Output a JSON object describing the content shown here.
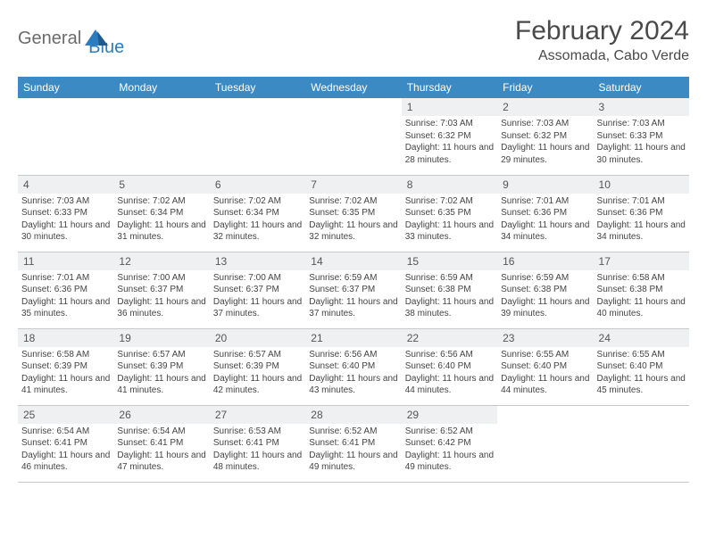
{
  "logo": {
    "text1": "General",
    "text2": "Blue",
    "shape_color": "#2d7cc0"
  },
  "header": {
    "month_title": "February 2024",
    "location": "Assomada, Cabo Verde"
  },
  "colors": {
    "header_bg": "#3b8ac4",
    "header_text": "#ffffff",
    "daynum_bg": "#eef0f2",
    "border": "#c8c8c8",
    "body_text": "#444444",
    "title_text": "#4a4a4a"
  },
  "weekdays": [
    "Sunday",
    "Monday",
    "Tuesday",
    "Wednesday",
    "Thursday",
    "Friday",
    "Saturday"
  ],
  "weeks": [
    [
      {
        "empty": true
      },
      {
        "empty": true
      },
      {
        "empty": true
      },
      {
        "empty": true
      },
      {
        "day": "1",
        "sunrise": "Sunrise: 7:03 AM",
        "sunset": "Sunset: 6:32 PM",
        "daylight": "Daylight: 11 hours and 28 minutes."
      },
      {
        "day": "2",
        "sunrise": "Sunrise: 7:03 AM",
        "sunset": "Sunset: 6:32 PM",
        "daylight": "Daylight: 11 hours and 29 minutes."
      },
      {
        "day": "3",
        "sunrise": "Sunrise: 7:03 AM",
        "sunset": "Sunset: 6:33 PM",
        "daylight": "Daylight: 11 hours and 30 minutes."
      }
    ],
    [
      {
        "day": "4",
        "sunrise": "Sunrise: 7:03 AM",
        "sunset": "Sunset: 6:33 PM",
        "daylight": "Daylight: 11 hours and 30 minutes."
      },
      {
        "day": "5",
        "sunrise": "Sunrise: 7:02 AM",
        "sunset": "Sunset: 6:34 PM",
        "daylight": "Daylight: 11 hours and 31 minutes."
      },
      {
        "day": "6",
        "sunrise": "Sunrise: 7:02 AM",
        "sunset": "Sunset: 6:34 PM",
        "daylight": "Daylight: 11 hours and 32 minutes."
      },
      {
        "day": "7",
        "sunrise": "Sunrise: 7:02 AM",
        "sunset": "Sunset: 6:35 PM",
        "daylight": "Daylight: 11 hours and 32 minutes."
      },
      {
        "day": "8",
        "sunrise": "Sunrise: 7:02 AM",
        "sunset": "Sunset: 6:35 PM",
        "daylight": "Daylight: 11 hours and 33 minutes."
      },
      {
        "day": "9",
        "sunrise": "Sunrise: 7:01 AM",
        "sunset": "Sunset: 6:36 PM",
        "daylight": "Daylight: 11 hours and 34 minutes."
      },
      {
        "day": "10",
        "sunrise": "Sunrise: 7:01 AM",
        "sunset": "Sunset: 6:36 PM",
        "daylight": "Daylight: 11 hours and 34 minutes."
      }
    ],
    [
      {
        "day": "11",
        "sunrise": "Sunrise: 7:01 AM",
        "sunset": "Sunset: 6:36 PM",
        "daylight": "Daylight: 11 hours and 35 minutes."
      },
      {
        "day": "12",
        "sunrise": "Sunrise: 7:00 AM",
        "sunset": "Sunset: 6:37 PM",
        "daylight": "Daylight: 11 hours and 36 minutes."
      },
      {
        "day": "13",
        "sunrise": "Sunrise: 7:00 AM",
        "sunset": "Sunset: 6:37 PM",
        "daylight": "Daylight: 11 hours and 37 minutes."
      },
      {
        "day": "14",
        "sunrise": "Sunrise: 6:59 AM",
        "sunset": "Sunset: 6:37 PM",
        "daylight": "Daylight: 11 hours and 37 minutes."
      },
      {
        "day": "15",
        "sunrise": "Sunrise: 6:59 AM",
        "sunset": "Sunset: 6:38 PM",
        "daylight": "Daylight: 11 hours and 38 minutes."
      },
      {
        "day": "16",
        "sunrise": "Sunrise: 6:59 AM",
        "sunset": "Sunset: 6:38 PM",
        "daylight": "Daylight: 11 hours and 39 minutes."
      },
      {
        "day": "17",
        "sunrise": "Sunrise: 6:58 AM",
        "sunset": "Sunset: 6:38 PM",
        "daylight": "Daylight: 11 hours and 40 minutes."
      }
    ],
    [
      {
        "day": "18",
        "sunrise": "Sunrise: 6:58 AM",
        "sunset": "Sunset: 6:39 PM",
        "daylight": "Daylight: 11 hours and 41 minutes."
      },
      {
        "day": "19",
        "sunrise": "Sunrise: 6:57 AM",
        "sunset": "Sunset: 6:39 PM",
        "daylight": "Daylight: 11 hours and 41 minutes."
      },
      {
        "day": "20",
        "sunrise": "Sunrise: 6:57 AM",
        "sunset": "Sunset: 6:39 PM",
        "daylight": "Daylight: 11 hours and 42 minutes."
      },
      {
        "day": "21",
        "sunrise": "Sunrise: 6:56 AM",
        "sunset": "Sunset: 6:40 PM",
        "daylight": "Daylight: 11 hours and 43 minutes."
      },
      {
        "day": "22",
        "sunrise": "Sunrise: 6:56 AM",
        "sunset": "Sunset: 6:40 PM",
        "daylight": "Daylight: 11 hours and 44 minutes."
      },
      {
        "day": "23",
        "sunrise": "Sunrise: 6:55 AM",
        "sunset": "Sunset: 6:40 PM",
        "daylight": "Daylight: 11 hours and 44 minutes."
      },
      {
        "day": "24",
        "sunrise": "Sunrise: 6:55 AM",
        "sunset": "Sunset: 6:40 PM",
        "daylight": "Daylight: 11 hours and 45 minutes."
      }
    ],
    [
      {
        "day": "25",
        "sunrise": "Sunrise: 6:54 AM",
        "sunset": "Sunset: 6:41 PM",
        "daylight": "Daylight: 11 hours and 46 minutes."
      },
      {
        "day": "26",
        "sunrise": "Sunrise: 6:54 AM",
        "sunset": "Sunset: 6:41 PM",
        "daylight": "Daylight: 11 hours and 47 minutes."
      },
      {
        "day": "27",
        "sunrise": "Sunrise: 6:53 AM",
        "sunset": "Sunset: 6:41 PM",
        "daylight": "Daylight: 11 hours and 48 minutes."
      },
      {
        "day": "28",
        "sunrise": "Sunrise: 6:52 AM",
        "sunset": "Sunset: 6:41 PM",
        "daylight": "Daylight: 11 hours and 49 minutes."
      },
      {
        "day": "29",
        "sunrise": "Sunrise: 6:52 AM",
        "sunset": "Sunset: 6:42 PM",
        "daylight": "Daylight: 11 hours and 49 minutes."
      },
      {
        "empty": true
      },
      {
        "empty": true
      }
    ]
  ]
}
